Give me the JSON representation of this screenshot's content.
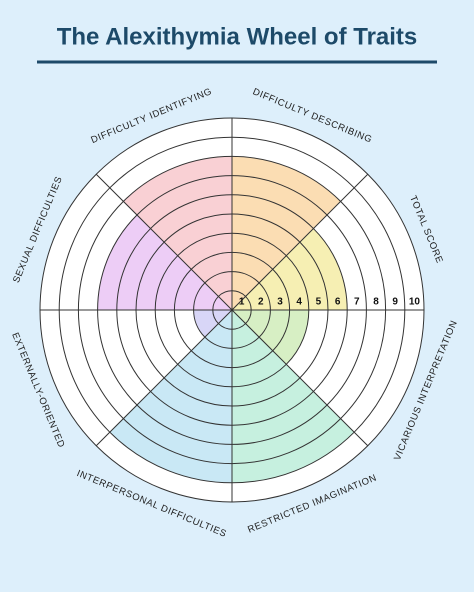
{
  "chart_data": {
    "type": "polar",
    "title": "The Alexithymia Wheel of Traits",
    "categories": [
      "DIFFICULTY IDENTIFYING",
      "DIFFICULTY DESCRIBING",
      "TOTAL SCORE",
      "VICARIOUS INTERPRETATION",
      "RESTRICTED  IMAGINATION",
      "INTERPERSONAL DIFFICULTIES",
      "EXTERNALLY-ORIENTED",
      "SEXUAL DIFFICULTIES"
    ],
    "values": [
      8,
      8,
      6,
      4,
      9,
      9,
      2,
      7
    ],
    "colors": [
      "#f9d0d4",
      "#fbddb3",
      "#f6efb3",
      "#d7efc4",
      "#c6f0df",
      "#c9e8f5",
      "#d8d6f7",
      "#edcdf6"
    ],
    "rlim": [
      0,
      10
    ],
    "rticks": [
      1,
      2,
      3,
      4,
      5,
      6,
      7,
      8,
      9,
      10
    ]
  }
}
